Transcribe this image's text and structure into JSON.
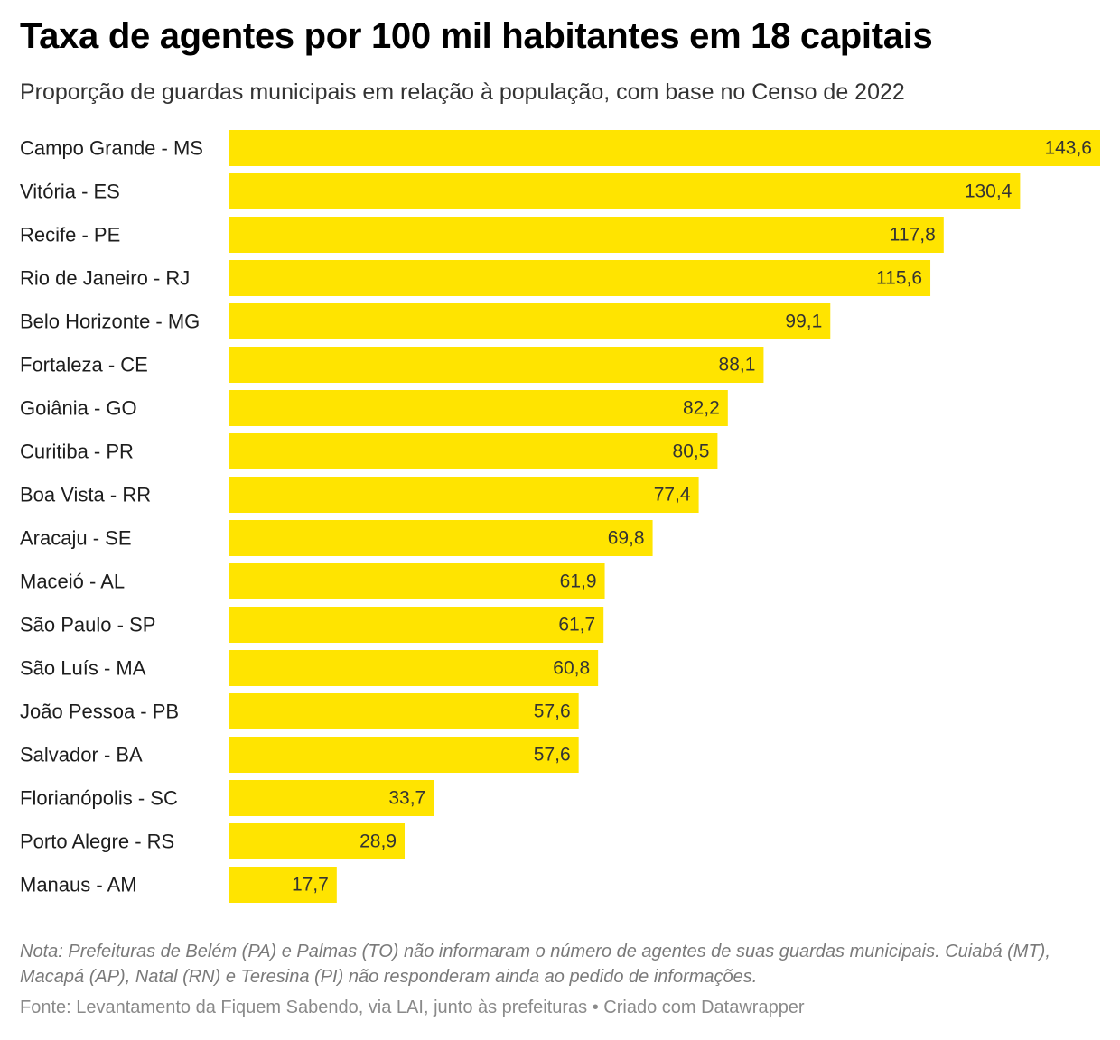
{
  "chart_data": {
    "type": "bar",
    "orientation": "horizontal",
    "title": "Taxa de agentes por 100 mil habitantes em 18 capitais",
    "subtitle": "Proporção de guardas municipais em relação à população, com base no Censo de 2022",
    "categories": [
      "Campo Grande - MS",
      "Vitória - ES",
      "Recife - PE",
      "Rio de Janeiro - RJ",
      "Belo Horizonte - MG",
      "Fortaleza - CE",
      "Goiânia - GO",
      "Curitiba - PR",
      "Boa Vista - RR",
      "Aracaju - SE",
      "Maceió - AL",
      "São Paulo - SP",
      "São Luís - MA",
      "João Pessoa - PB",
      "Salvador - BA",
      "Florianópolis - SC",
      "Porto Alegre - RS",
      "Manaus - AM"
    ],
    "values": [
      143.6,
      130.4,
      117.8,
      115.6,
      99.1,
      88.1,
      82.2,
      80.5,
      77.4,
      69.8,
      61.9,
      61.7,
      60.8,
      57.6,
      57.6,
      33.7,
      28.9,
      17.7
    ],
    "value_labels": [
      "143,6",
      "130,4",
      "117,8",
      "115,6",
      "99,1",
      "88,1",
      "82,2",
      "80,5",
      "77,4",
      "69,8",
      "61,9",
      "61,7",
      "60,8",
      "57,6",
      "57,6",
      "33,7",
      "28,9",
      "17,7"
    ],
    "xlim": [
      0,
      143.6
    ],
    "bar_color": "#ffe400",
    "grid": false,
    "legend": "none",
    "xlabel": "",
    "ylabel": ""
  },
  "note": "Nota: Prefeituras de Belém (PA) e Palmas (TO) não informaram o número de agentes de suas guardas municipais. Cuiabá (MT), Macapá (AP), Natal (RN) e Teresina (PI) não responderam ainda ao pedido de informações.",
  "source": "Fonte: Levantamento da Fiquem Sabendo, via LAI, junto às prefeituras • Criado com Datawrapper"
}
